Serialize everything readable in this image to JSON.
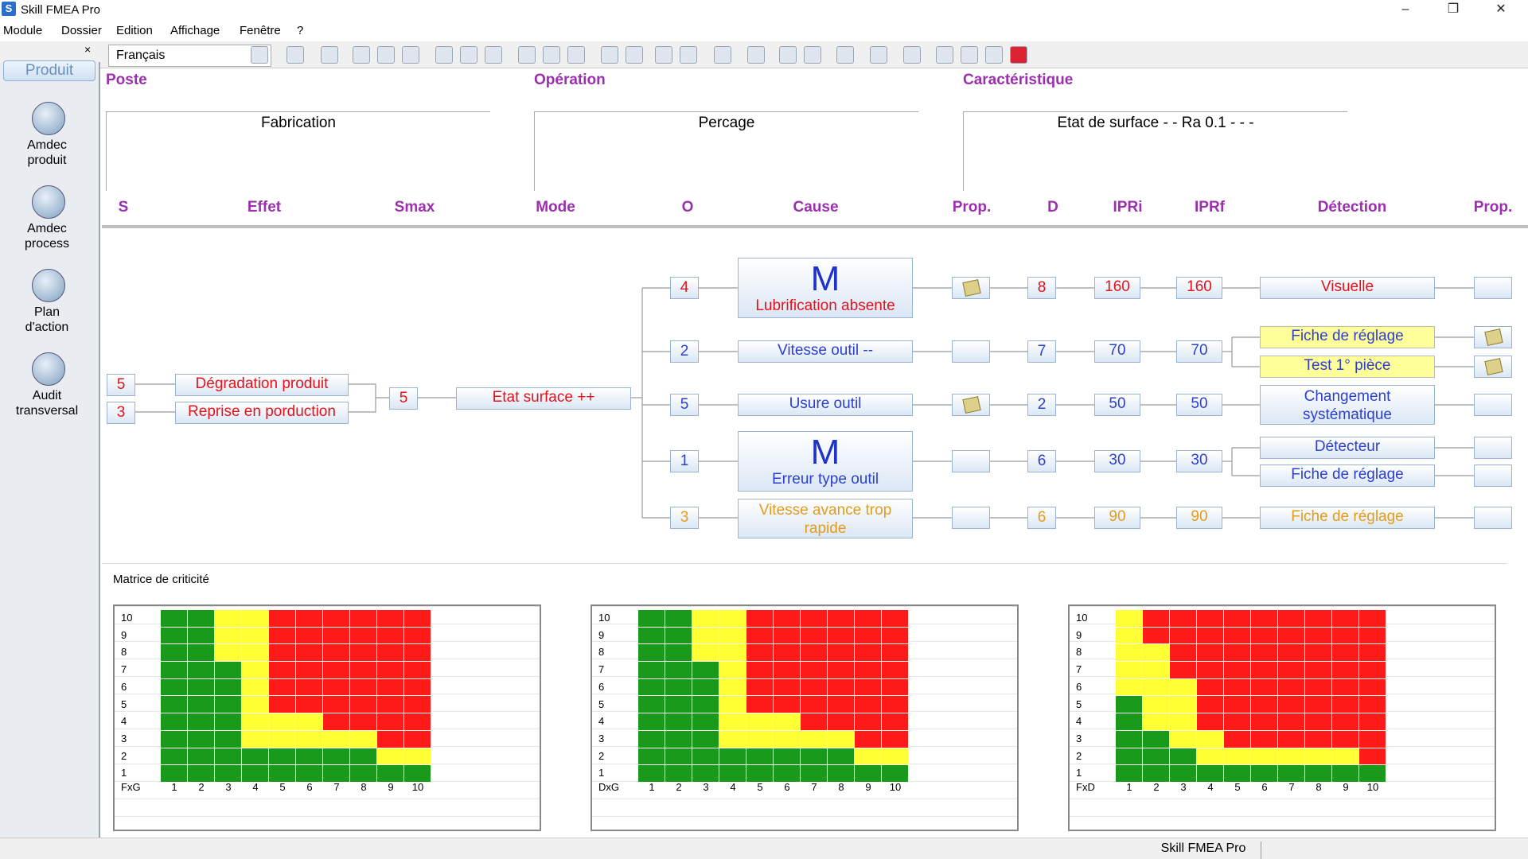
{
  "window": {
    "title": "Skill FMEA Pro",
    "app_icon": "S"
  },
  "menu": [
    "Module",
    "Dossier",
    "Edition",
    "Affichage",
    "Fenêtre",
    "?"
  ],
  "toolbar": {
    "language": "Français"
  },
  "sidebar": {
    "tab": "Produit",
    "close": "×",
    "items": [
      {
        "label": "Amdec\nproduit",
        "icon": "product-fmea-icon"
      },
      {
        "label": "Amdec\nprocess",
        "icon": "process-fmea-icon"
      },
      {
        "label": "Plan\nd'action",
        "icon": "action-plan-icon"
      },
      {
        "label": "Audit\ntransversal",
        "icon": "audit-icon"
      }
    ]
  },
  "header": {
    "poste": "Poste",
    "operation": "Opération",
    "caracteristique": "Caractéristique",
    "poste_value": "Fabrication",
    "operation_value": "Percage",
    "caracteristique_value": "Etat de surface -  - Ra 0.1 -  -  -"
  },
  "columns": [
    "S",
    "Effet",
    "Smax",
    "Mode",
    "O",
    "Cause",
    "Prop.",
    "D",
    "IPRi",
    "IPRf",
    "Détection",
    "Prop."
  ],
  "effects": [
    {
      "s": "5",
      "label": "Dégradation produit"
    },
    {
      "s": "3",
      "label": "Reprise en porduction"
    }
  ],
  "smax": "5",
  "mode": "Etat surface ++",
  "causes": [
    {
      "o": "4",
      "big": "M",
      "label": "Lubrification absente",
      "d": "8",
      "ipri": "160",
      "iprf": "160"
    },
    {
      "o": "2",
      "label": "Vitesse outil --",
      "d": "7",
      "ipri": "70",
      "iprf": "70"
    },
    {
      "o": "5",
      "label": "Usure outil",
      "d": "2",
      "ipri": "50",
      "iprf": "50"
    },
    {
      "o": "1",
      "big": "M",
      "label": "Erreur type outil",
      "d": "6",
      "ipri": "30",
      "iprf": "30"
    },
    {
      "o": "3",
      "label": "Vitesse avance trop rapide",
      "d": "6",
      "ipri": "90",
      "iprf": "90"
    }
  ],
  "detections": [
    "Visuelle",
    "Fiche de réglage",
    "Test 1° pièce",
    "Changement systématique",
    "Détecteur",
    "Fiche de réglage",
    "Fiche de réglage"
  ],
  "matrix": {
    "title": "Matrice de criticité",
    "colors": {
      "G": "#1a9a1a",
      "Y": "#ffff33",
      "R": "#ff1a1a"
    },
    "rows": [
      "10",
      "9",
      "8",
      "7",
      "6",
      "5",
      "4",
      "3",
      "2",
      "1"
    ],
    "cols": [
      "1",
      "2",
      "3",
      "4",
      "5",
      "6",
      "7",
      "8",
      "9",
      "10"
    ],
    "charts": [
      {
        "xname": "FxG",
        "grid": [
          "GGYYRRRRRR",
          "GGYYRRRRRR",
          "GGYYRRRRRR",
          "GGGYRRRRRR",
          "GGGYRRRRRR",
          "GGGYRRRRRR",
          "GGGYYYRRRR",
          "GGGYYYYYRR",
          "GGGGGGGGYY",
          "GGGGGGGGGG"
        ]
      },
      {
        "xname": "DxG",
        "grid": [
          "GGYYRRRRRR",
          "GGYYRRRRRR",
          "GGYYRRRRRR",
          "GGGYRRRRRR",
          "GGGYRRRRRR",
          "GGGYRRRRRR",
          "GGGYYYRRRR",
          "GGGYYYYYRR",
          "GGGGGGGGYY",
          "GGGGGGGGGG"
        ]
      },
      {
        "xname": "FxD",
        "grid": [
          "YRRRRRRRRR",
          "YRRRRRRRRR",
          "YYRRRRRRRR",
          "YYRRRRRRRR",
          "YYYRRRRRRR",
          "GYYRRRRRRR",
          "GYYRRRRRRR",
          "GGYYRRRRRR",
          "GGGYYYYYYR",
          "GGGGGGGGGG"
        ]
      }
    ]
  },
  "status": "Skill FMEA Pro"
}
